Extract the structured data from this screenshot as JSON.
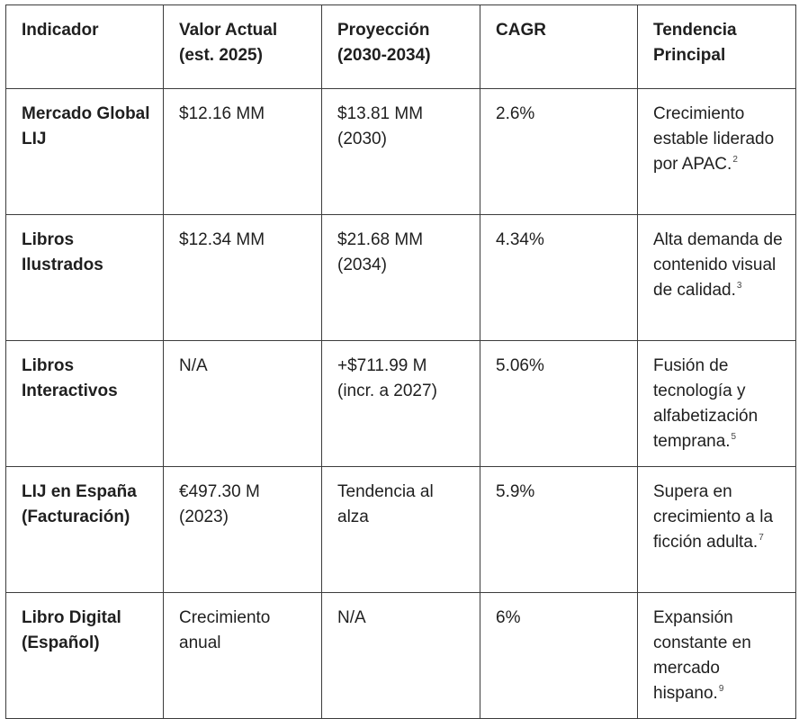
{
  "table": {
    "headers": [
      "Indicador",
      "Valor Actual (est. 2025)",
      "Proyección (2030-2034)",
      "CAGR",
      "Tendencia Principal"
    ],
    "rows": [
      {
        "indicador": "Mercado Global LIJ",
        "valor": "$12.16 MM",
        "proyeccion": "$13.81 MM (2030)",
        "cagr": "2.6%",
        "tendencia": "Crecimiento estable liderado por APAC.",
        "ref": "2"
      },
      {
        "indicador": "Libros Ilustrados",
        "valor": "$12.34 MM",
        "proyeccion": "$21.68 MM (2034)",
        "cagr": "4.34%",
        "tendencia": "Alta demanda de contenido visual de calidad.",
        "ref": "3"
      },
      {
        "indicador": "Libros Interactivos",
        "valor": "N/A",
        "proyeccion": "+$711.99 M (incr. a 2027)",
        "cagr": "5.06%",
        "tendencia": "Fusión de tecnología y alfabetización temprana.",
        "ref": "5"
      },
      {
        "indicador": "LIJ en España (Facturación)",
        "valor": "€497.30 M (2023)",
        "proyeccion": "Tendencia al alza",
        "cagr": "5.9%",
        "tendencia": "Supera en crecimiento a la ficción adulta.",
        "ref": "7"
      },
      {
        "indicador": "Libro Digital (Español)",
        "valor": "Crecimiento anual",
        "proyeccion": "N/A",
        "cagr": "6%",
        "tendencia": "Expansión constante en mercado hispano.",
        "ref": "9"
      }
    ]
  }
}
